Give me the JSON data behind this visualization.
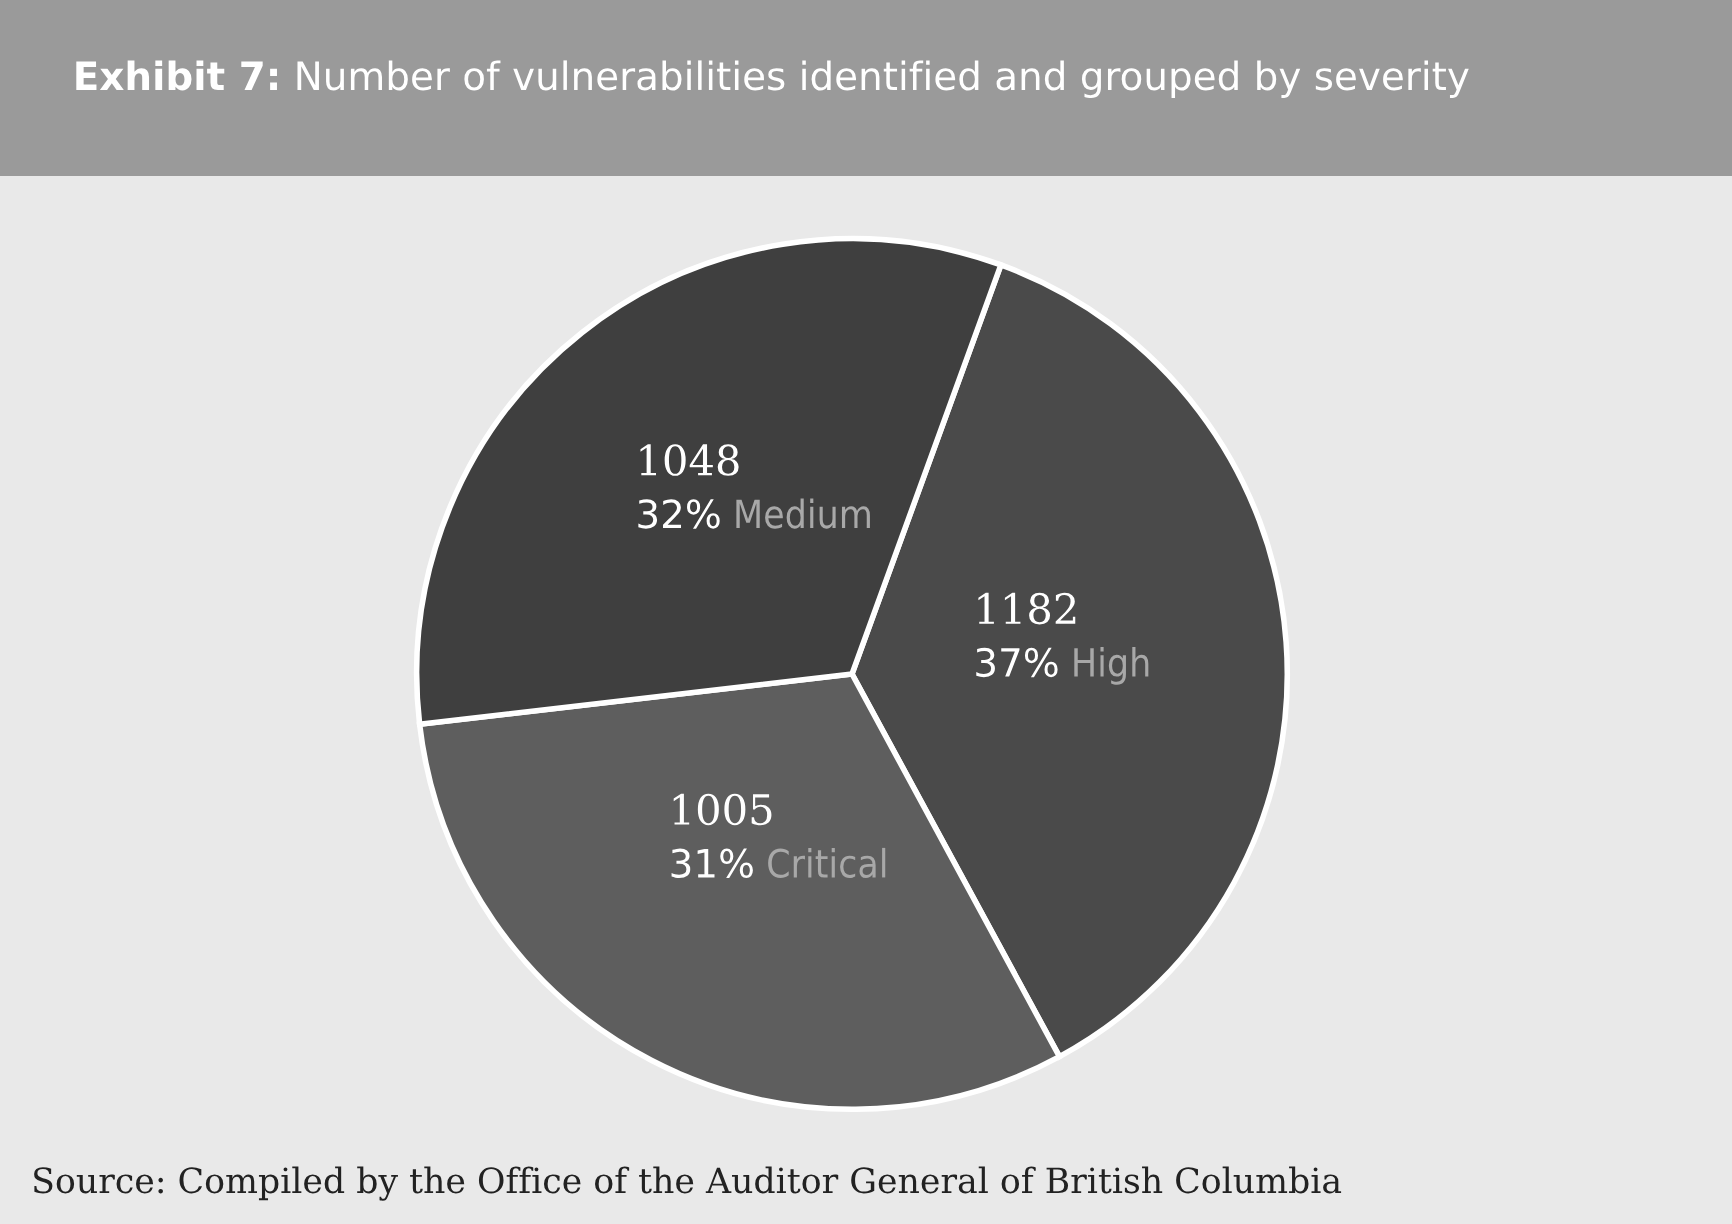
{
  "chart_data": {
    "type": "pie",
    "title": "Exhibit 7: Number of vulnerabilities identified and grouped by severity",
    "categories": [
      "High",
      "Critical",
      "Medium"
    ],
    "values": [
      1182,
      1005,
      1048
    ],
    "colors": [
      "#4a4a4a",
      "#5e5e5e",
      "#3f3f3f"
    ],
    "value_labels": [
      "1182\n37%",
      "1005\n31%",
      "1048\n32%"
    ],
    "annotations": [
      "Source: Compiled by the Office of the Auditor General of British Columbia"
    ],
    "legend": false
  }
}
